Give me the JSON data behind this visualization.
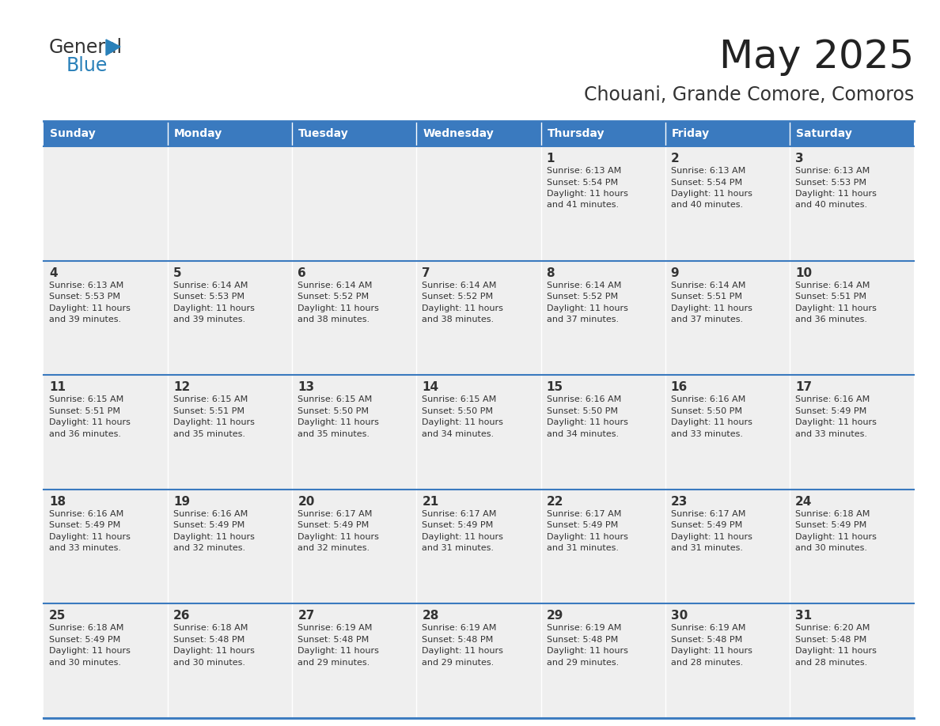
{
  "title": "May 2025",
  "subtitle": "Chouani, Grande Comore, Comoros",
  "header_bg": "#3a7abf",
  "header_text_color": "#ffffff",
  "cell_bg_light": "#efefef",
  "border_color": "#3a7abf",
  "text_color": "#333333",
  "days_of_week": [
    "Sunday",
    "Monday",
    "Tuesday",
    "Wednesday",
    "Thursday",
    "Friday",
    "Saturday"
  ],
  "weeks": [
    [
      {
        "day": "",
        "sunrise": "",
        "sunset": "",
        "daylight": ""
      },
      {
        "day": "",
        "sunrise": "",
        "sunset": "",
        "daylight": ""
      },
      {
        "day": "",
        "sunrise": "",
        "sunset": "",
        "daylight": ""
      },
      {
        "day": "",
        "sunrise": "",
        "sunset": "",
        "daylight": ""
      },
      {
        "day": "1",
        "sunrise": "6:13 AM",
        "sunset": "5:54 PM",
        "daylight_l1": "Daylight: 11 hours",
        "daylight_l2": "and 41 minutes."
      },
      {
        "day": "2",
        "sunrise": "6:13 AM",
        "sunset": "5:54 PM",
        "daylight_l1": "Daylight: 11 hours",
        "daylight_l2": "and 40 minutes."
      },
      {
        "day": "3",
        "sunrise": "6:13 AM",
        "sunset": "5:53 PM",
        "daylight_l1": "Daylight: 11 hours",
        "daylight_l2": "and 40 minutes."
      }
    ],
    [
      {
        "day": "4",
        "sunrise": "6:13 AM",
        "sunset": "5:53 PM",
        "daylight_l1": "Daylight: 11 hours",
        "daylight_l2": "and 39 minutes."
      },
      {
        "day": "5",
        "sunrise": "6:14 AM",
        "sunset": "5:53 PM",
        "daylight_l1": "Daylight: 11 hours",
        "daylight_l2": "and 39 minutes."
      },
      {
        "day": "6",
        "sunrise": "6:14 AM",
        "sunset": "5:52 PM",
        "daylight_l1": "Daylight: 11 hours",
        "daylight_l2": "and 38 minutes."
      },
      {
        "day": "7",
        "sunrise": "6:14 AM",
        "sunset": "5:52 PM",
        "daylight_l1": "Daylight: 11 hours",
        "daylight_l2": "and 38 minutes."
      },
      {
        "day": "8",
        "sunrise": "6:14 AM",
        "sunset": "5:52 PM",
        "daylight_l1": "Daylight: 11 hours",
        "daylight_l2": "and 37 minutes."
      },
      {
        "day": "9",
        "sunrise": "6:14 AM",
        "sunset": "5:51 PM",
        "daylight_l1": "Daylight: 11 hours",
        "daylight_l2": "and 37 minutes."
      },
      {
        "day": "10",
        "sunrise": "6:14 AM",
        "sunset": "5:51 PM",
        "daylight_l1": "Daylight: 11 hours",
        "daylight_l2": "and 36 minutes."
      }
    ],
    [
      {
        "day": "11",
        "sunrise": "6:15 AM",
        "sunset": "5:51 PM",
        "daylight_l1": "Daylight: 11 hours",
        "daylight_l2": "and 36 minutes."
      },
      {
        "day": "12",
        "sunrise": "6:15 AM",
        "sunset": "5:51 PM",
        "daylight_l1": "Daylight: 11 hours",
        "daylight_l2": "and 35 minutes."
      },
      {
        "day": "13",
        "sunrise": "6:15 AM",
        "sunset": "5:50 PM",
        "daylight_l1": "Daylight: 11 hours",
        "daylight_l2": "and 35 minutes."
      },
      {
        "day": "14",
        "sunrise": "6:15 AM",
        "sunset": "5:50 PM",
        "daylight_l1": "Daylight: 11 hours",
        "daylight_l2": "and 34 minutes."
      },
      {
        "day": "15",
        "sunrise": "6:16 AM",
        "sunset": "5:50 PM",
        "daylight_l1": "Daylight: 11 hours",
        "daylight_l2": "and 34 minutes."
      },
      {
        "day": "16",
        "sunrise": "6:16 AM",
        "sunset": "5:50 PM",
        "daylight_l1": "Daylight: 11 hours",
        "daylight_l2": "and 33 minutes."
      },
      {
        "day": "17",
        "sunrise": "6:16 AM",
        "sunset": "5:49 PM",
        "daylight_l1": "Daylight: 11 hours",
        "daylight_l2": "and 33 minutes."
      }
    ],
    [
      {
        "day": "18",
        "sunrise": "6:16 AM",
        "sunset": "5:49 PM",
        "daylight_l1": "Daylight: 11 hours",
        "daylight_l2": "and 33 minutes."
      },
      {
        "day": "19",
        "sunrise": "6:16 AM",
        "sunset": "5:49 PM",
        "daylight_l1": "Daylight: 11 hours",
        "daylight_l2": "and 32 minutes."
      },
      {
        "day": "20",
        "sunrise": "6:17 AM",
        "sunset": "5:49 PM",
        "daylight_l1": "Daylight: 11 hours",
        "daylight_l2": "and 32 minutes."
      },
      {
        "day": "21",
        "sunrise": "6:17 AM",
        "sunset": "5:49 PM",
        "daylight_l1": "Daylight: 11 hours",
        "daylight_l2": "and 31 minutes."
      },
      {
        "day": "22",
        "sunrise": "6:17 AM",
        "sunset": "5:49 PM",
        "daylight_l1": "Daylight: 11 hours",
        "daylight_l2": "and 31 minutes."
      },
      {
        "day": "23",
        "sunrise": "6:17 AM",
        "sunset": "5:49 PM",
        "daylight_l1": "Daylight: 11 hours",
        "daylight_l2": "and 31 minutes."
      },
      {
        "day": "24",
        "sunrise": "6:18 AM",
        "sunset": "5:49 PM",
        "daylight_l1": "Daylight: 11 hours",
        "daylight_l2": "and 30 minutes."
      }
    ],
    [
      {
        "day": "25",
        "sunrise": "6:18 AM",
        "sunset": "5:49 PM",
        "daylight_l1": "Daylight: 11 hours",
        "daylight_l2": "and 30 minutes."
      },
      {
        "day": "26",
        "sunrise": "6:18 AM",
        "sunset": "5:48 PM",
        "daylight_l1": "Daylight: 11 hours",
        "daylight_l2": "and 30 minutes."
      },
      {
        "day": "27",
        "sunrise": "6:19 AM",
        "sunset": "5:48 PM",
        "daylight_l1": "Daylight: 11 hours",
        "daylight_l2": "and 29 minutes."
      },
      {
        "day": "28",
        "sunrise": "6:19 AM",
        "sunset": "5:48 PM",
        "daylight_l1": "Daylight: 11 hours",
        "daylight_l2": "and 29 minutes."
      },
      {
        "day": "29",
        "sunrise": "6:19 AM",
        "sunset": "5:48 PM",
        "daylight_l1": "Daylight: 11 hours",
        "daylight_l2": "and 29 minutes."
      },
      {
        "day": "30",
        "sunrise": "6:19 AM",
        "sunset": "5:48 PM",
        "daylight_l1": "Daylight: 11 hours",
        "daylight_l2": "and 28 minutes."
      },
      {
        "day": "31",
        "sunrise": "6:20 AM",
        "sunset": "5:48 PM",
        "daylight_l1": "Daylight: 11 hours",
        "daylight_l2": "and 28 minutes."
      }
    ]
  ]
}
